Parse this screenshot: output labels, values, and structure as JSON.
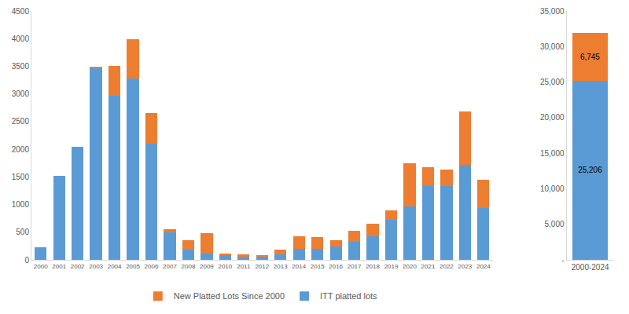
{
  "chart_data": [
    {
      "type": "bar",
      "stacked": true,
      "grid": false,
      "legend": "bottom",
      "categories": [
        "2000",
        "2001",
        "2002",
        "2003",
        "2004",
        "2005",
        "2006",
        "2007",
        "2008",
        "2009",
        "2010",
        "2011",
        "2012",
        "2013",
        "2014",
        "2015",
        "2016",
        "2017",
        "2018",
        "2019",
        "2020",
        "2021",
        "2022",
        "2023",
        "2024"
      ],
      "series": [
        {
          "name": "ITT platted lots",
          "color": "#5b9bd5",
          "values": [
            230,
            1520,
            2050,
            3460,
            2970,
            3280,
            2100,
            500,
            180,
            120,
            80,
            60,
            60,
            100,
            200,
            200,
            240,
            330,
            430,
            720,
            970,
            1340,
            1340,
            1720,
            930
          ]
        },
        {
          "name": "New Platted Lots Since 2000",
          "color": "#ed7d31",
          "values": [
            0,
            0,
            0,
            30,
            540,
            710,
            550,
            60,
            180,
            360,
            30,
            40,
            30,
            90,
            230,
            210,
            120,
            200,
            230,
            170,
            780,
            330,
            290,
            960,
            520
          ]
        }
      ],
      "ylim": [
        0,
        4500
      ],
      "yticks": [
        0,
        500,
        1000,
        1500,
        2000,
        2500,
        3000,
        3500,
        4000,
        4500
      ]
    },
    {
      "type": "bar",
      "stacked": true,
      "grid": false,
      "data_labels": true,
      "categories": [
        "2000-2024"
      ],
      "series": [
        {
          "color": "#5b9bd5",
          "values": [
            25206
          ],
          "value_labels": [
            "25,206"
          ]
        },
        {
          "color": "#ed7d31",
          "values": [
            6745
          ],
          "value_labels": [
            "6,745"
          ]
        }
      ],
      "ylim": [
        0,
        35000
      ],
      "yticks": [
        {
          "value": 0,
          "label": "-"
        },
        {
          "value": 5000,
          "label": "5,000"
        },
        {
          "value": 10000,
          "label": "10,000"
        },
        {
          "value": 15000,
          "label": "15,000"
        },
        {
          "value": 20000,
          "label": "20,000"
        },
        {
          "value": 25000,
          "label": "25,000"
        },
        {
          "value": 30000,
          "label": "30,000"
        },
        {
          "value": 35000,
          "label": "35,000"
        }
      ]
    }
  ]
}
